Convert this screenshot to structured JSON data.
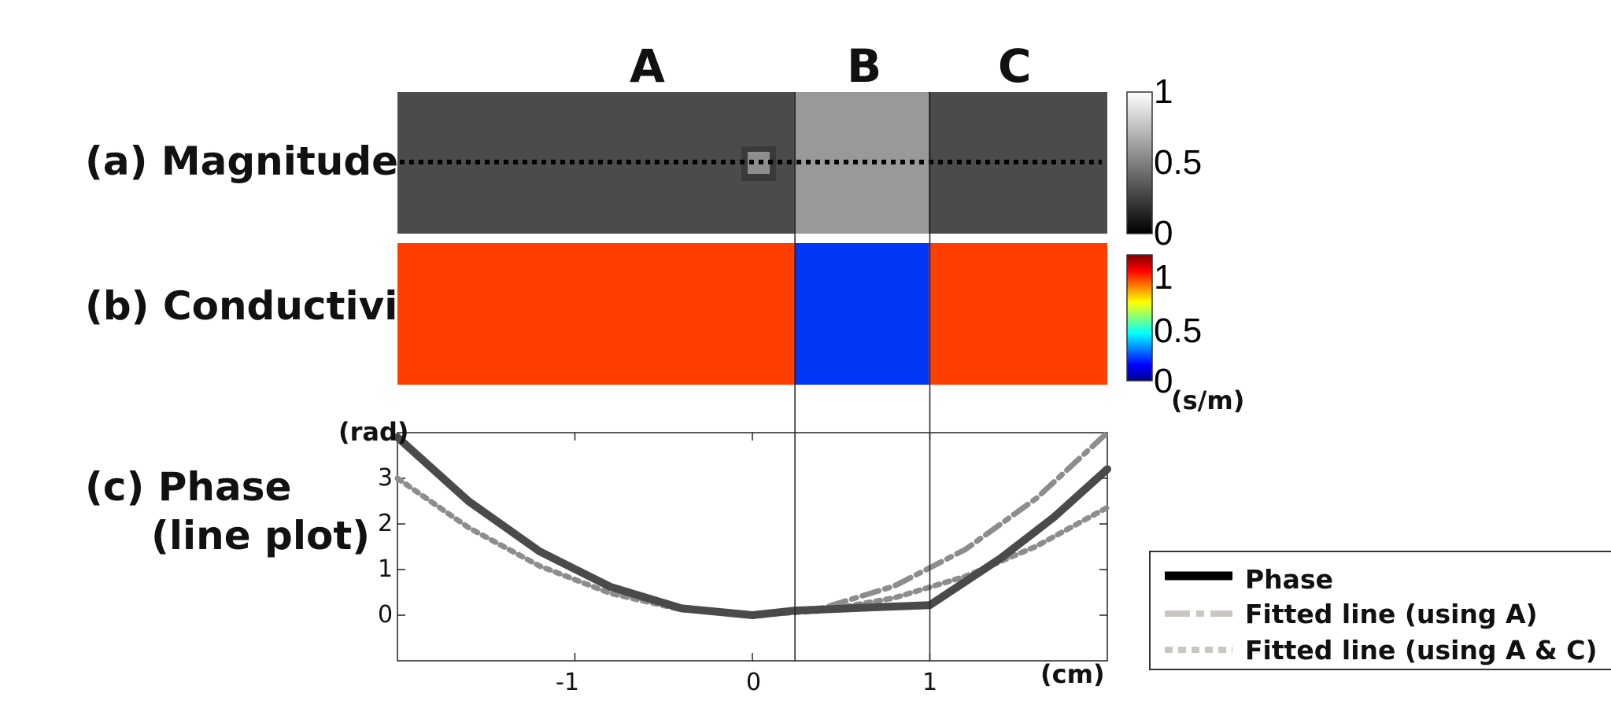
{
  "region_labels": [
    "A",
    "B",
    "C"
  ],
  "rows": {
    "magnitude": "(a) Magnitude",
    "conductivity": "(b) Conductivity",
    "phase_line1": "(c) Phase",
    "phase_line2": "(line plot)"
  },
  "colors": {
    "magnitude_dark": "#4b4b4b",
    "magnitude_light": "#999999",
    "conductivity_high": "#ff3f00",
    "conductivity_low": "#0037f7",
    "phase": "#4a4a4a",
    "fit_a": "#8d8d8d",
    "fit_ac": "#8d8d8d"
  },
  "magnitude_colorbar": {
    "ticks": [
      "1",
      "0.5",
      "0"
    ]
  },
  "conductivity_colorbar": {
    "ticks": [
      "1",
      "0.5",
      "0"
    ],
    "unit": "(s/m)"
  },
  "chart_data": {
    "type": "line",
    "xlabel": "(cm)",
    "ylabel": "(rad)",
    "xlim": [
      -2.0,
      2.0
    ],
    "ylim": [
      -1.0,
      4.0
    ],
    "xticks": [
      -1,
      0,
      1
    ],
    "yticks": [
      0,
      1,
      2,
      3
    ],
    "region_boundaries": [
      0.24,
      1.0
    ],
    "series": [
      {
        "name": "Phase",
        "style": "solid",
        "x": [
          -2.0,
          -1.6,
          -1.2,
          -0.8,
          -0.4,
          0.0,
          0.24,
          0.6,
          1.0,
          1.4,
          1.7,
          2.0
        ],
        "y": [
          3.9,
          2.5,
          1.4,
          0.62,
          0.15,
          0.0,
          0.1,
          0.16,
          0.22,
          1.25,
          2.15,
          3.2
        ]
      },
      {
        "name": "Fitted line (using A)",
        "style": "dash-dot",
        "x": [
          -2.0,
          -1.6,
          -1.2,
          -0.8,
          -0.4,
          0.0,
          0.4,
          0.8,
          1.2,
          1.6,
          2.0
        ],
        "y": [
          3.9,
          2.5,
          1.4,
          0.62,
          0.15,
          0.0,
          0.16,
          0.64,
          1.44,
          2.56,
          4.0
        ]
      },
      {
        "name": "Fitted line (using A & C)",
        "style": "dotted",
        "x": [
          -2.0,
          -1.6,
          -1.2,
          -0.8,
          -0.4,
          0.0,
          0.4,
          0.8,
          1.2,
          1.6,
          2.0
        ],
        "y": [
          3.0,
          1.92,
          1.08,
          0.48,
          0.12,
          0.0,
          0.1,
          0.38,
          0.85,
          1.51,
          2.36
        ]
      }
    ]
  }
}
